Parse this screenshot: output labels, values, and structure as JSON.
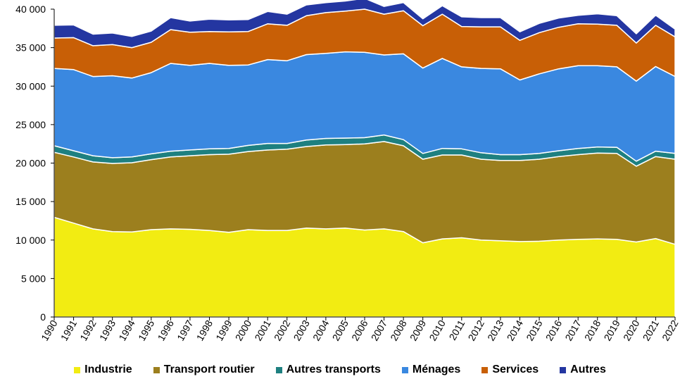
{
  "chart_data": {
    "type": "area",
    "stacked": true,
    "x": [
      "1990",
      "1991",
      "1992",
      "1993",
      "1994",
      "1995",
      "1996",
      "1997",
      "1998",
      "1999",
      "2000",
      "2001",
      "2002",
      "2003",
      "2004",
      "2005",
      "2006",
      "2007",
      "2008",
      "2009",
      "2010",
      "2011",
      "2012",
      "2013",
      "2014",
      "2015",
      "2016",
      "2017",
      "2018",
      "2019",
      "2020",
      "2021",
      "2022"
    ],
    "ylim": [
      0,
      40000
    ],
    "yticks": [
      0,
      5000,
      10000,
      15000,
      20000,
      25000,
      30000,
      35000,
      40000
    ],
    "ytick_labels": [
      "0",
      "5 000",
      "10 000",
      "15 000",
      "20 000",
      "25 000",
      "30 000",
      "35 000",
      "40 000"
    ],
    "grid": false,
    "legend_position": "bottom",
    "series": [
      {
        "name": "Industrie",
        "color": "#f2ec12",
        "values": [
          12950,
          12200,
          11450,
          11100,
          11050,
          11350,
          11450,
          11400,
          11250,
          11000,
          11350,
          11250,
          11250,
          11550,
          11450,
          11550,
          11300,
          11450,
          11100,
          9650,
          10150,
          10300,
          10000,
          9900,
          9800,
          9850,
          10000,
          10100,
          10150,
          10100,
          9750,
          10200,
          9450
        ]
      },
      {
        "name": "Transport routier",
        "color": "#9c7f1e",
        "values": [
          8450,
          8600,
          8700,
          8850,
          9000,
          9100,
          9350,
          9550,
          9850,
          10150,
          10150,
          10450,
          10550,
          10600,
          10900,
          10850,
          11200,
          11350,
          11150,
          10850,
          10900,
          10750,
          10500,
          10450,
          10550,
          10650,
          10850,
          11000,
          11150,
          11150,
          9850,
          10650,
          11050
        ]
      },
      {
        "name": "Autres transports",
        "color": "#1e8080",
        "values": [
          850,
          800,
          800,
          750,
          750,
          750,
          750,
          750,
          750,
          750,
          800,
          850,
          750,
          850,
          850,
          850,
          800,
          850,
          800,
          750,
          850,
          800,
          850,
          750,
          750,
          750,
          750,
          800,
          800,
          800,
          650,
          700,
          750
        ]
      },
      {
        "name": "Ménages",
        "color": "#3a88e0",
        "values": [
          10050,
          10550,
          10300,
          10650,
          10250,
          10550,
          11400,
          11000,
          11100,
          10800,
          10450,
          10900,
          10750,
          11100,
          11050,
          11200,
          11100,
          10400,
          11150,
          11100,
          11700,
          10650,
          10950,
          11150,
          9700,
          10350,
          10650,
          10750,
          10550,
          10450,
          10400,
          11000,
          10000
        ]
      },
      {
        "name": "Services",
        "color": "#c85f06",
        "values": [
          3950,
          4150,
          4000,
          4050,
          3950,
          3950,
          4400,
          4300,
          4150,
          4350,
          4350,
          4650,
          4600,
          5050,
          5300,
          5300,
          5600,
          5300,
          5600,
          5500,
          5750,
          5250,
          5400,
          5450,
          5150,
          5350,
          5400,
          5450,
          5400,
          5400,
          4950,
          5350,
          5150
        ]
      },
      {
        "name": "Autres",
        "color": "#2436a1",
        "values": [
          1650,
          1650,
          1500,
          1500,
          1450,
          1450,
          1550,
          1450,
          1600,
          1550,
          1550,
          1600,
          1450,
          1400,
          1300,
          1300,
          1400,
          1000,
          1050,
          900,
          1100,
          1250,
          1200,
          1200,
          1100,
          1200,
          1200,
          1100,
          1350,
          1250,
          1200,
          1300,
          1000
        ]
      }
    ]
  }
}
